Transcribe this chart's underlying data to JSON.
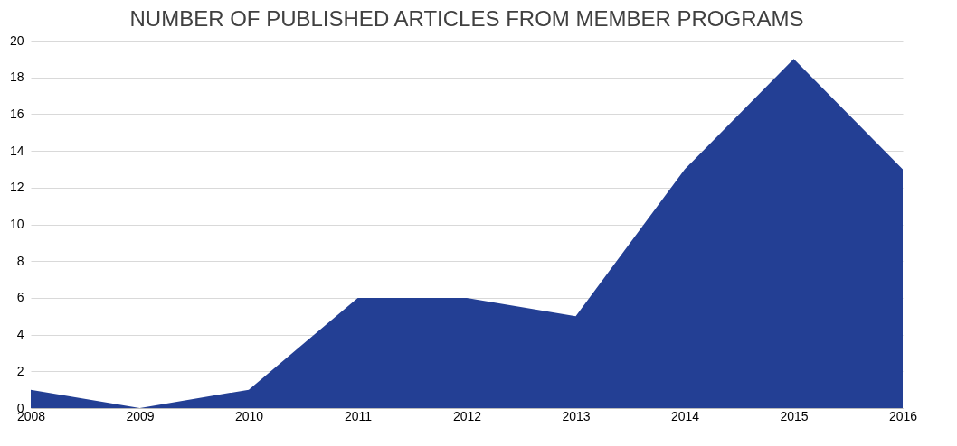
{
  "chart_data": {
    "type": "area",
    "title": "NUMBER OF PUBLISHED ARTICLES FROM MEMBER PROGRAMS",
    "categories": [
      "2008",
      "2009",
      "2010",
      "2011",
      "2012",
      "2013",
      "2014",
      "2015",
      "2016"
    ],
    "series": [
      {
        "color": "#233f94",
        "values": [
          1,
          0,
          1,
          6,
          6,
          5,
          13,
          19,
          13
        ]
      }
    ],
    "ylim": [
      0,
      20
    ],
    "yticks": [
      0,
      2,
      4,
      6,
      8,
      10,
      12,
      14,
      16,
      18,
      20
    ],
    "grid": "y"
  }
}
